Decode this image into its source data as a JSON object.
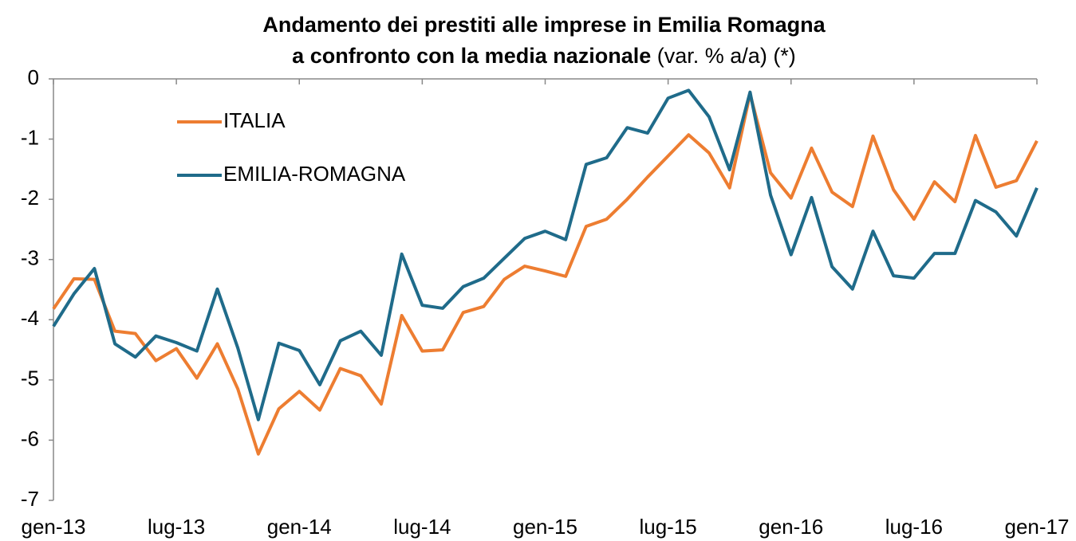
{
  "chart_data": {
    "type": "line",
    "title": {
      "line1": "Andamento dei prestiti alle imprese in Emilia Romagna",
      "line2_bold": "a confronto con la media nazionale",
      "line2_regular": "(var. % a/a) (*)"
    },
    "categories": [
      "gen-13",
      null,
      null,
      null,
      null,
      null,
      "lug-13",
      null,
      null,
      null,
      null,
      null,
      "gen-14",
      null,
      null,
      null,
      null,
      null,
      "lug-14",
      null,
      null,
      null,
      null,
      null,
      "gen-15",
      null,
      null,
      null,
      null,
      null,
      "lug-15",
      null,
      null,
      null,
      null,
      null,
      "gen-16",
      null,
      null,
      null,
      null,
      null,
      "lug-16",
      null,
      null,
      null,
      null,
      null,
      "gen-17"
    ],
    "series": [
      {
        "name": "ITALIA",
        "color": "#ed7d31",
        "values": [
          -3.82,
          -3.32,
          -3.33,
          -4.19,
          -4.23,
          -4.68,
          -4.48,
          -4.97,
          -4.4,
          -5.15,
          -6.23,
          -5.48,
          -5.19,
          -5.5,
          -4.81,
          -4.93,
          -5.4,
          -3.93,
          -4.52,
          -4.5,
          -3.88,
          -3.78,
          -3.33,
          -3.11,
          -3.19,
          -3.28,
          -2.45,
          -2.33,
          -2.0,
          -1.63,
          -1.28,
          -0.93,
          -1.23,
          -1.81,
          -0.25,
          -1.56,
          -1.98,
          -1.15,
          -1.88,
          -2.12,
          -0.95,
          -1.84,
          -2.33,
          -1.71,
          -2.04,
          -0.94,
          -1.8,
          -1.69,
          -1.03
        ]
      },
      {
        "name": "EMILIA-ROMAGNA",
        "color": "#1f6b8a",
        "values": [
          -4.11,
          -3.57,
          -3.15,
          -4.4,
          -4.62,
          -4.27,
          -4.38,
          -4.52,
          -3.49,
          -4.47,
          -5.66,
          -4.39,
          -4.51,
          -5.08,
          -4.35,
          -4.19,
          -4.59,
          -2.91,
          -3.76,
          -3.81,
          -3.45,
          -3.31,
          -2.98,
          -2.65,
          -2.53,
          -2.67,
          -1.42,
          -1.31,
          -0.81,
          -0.9,
          -0.32,
          -0.19,
          -0.63,
          -1.51,
          -0.22,
          -1.93,
          -2.92,
          -1.97,
          -3.12,
          -3.49,
          -2.53,
          -3.27,
          -3.31,
          -2.9,
          -2.9,
          -2.02,
          -2.21,
          -2.61,
          -1.81
        ]
      }
    ],
    "ylim": [
      -7,
      0
    ],
    "yticks": [
      0,
      -1,
      -2,
      -3,
      -4,
      -5,
      -6,
      -7
    ],
    "legend": "upper-left"
  }
}
